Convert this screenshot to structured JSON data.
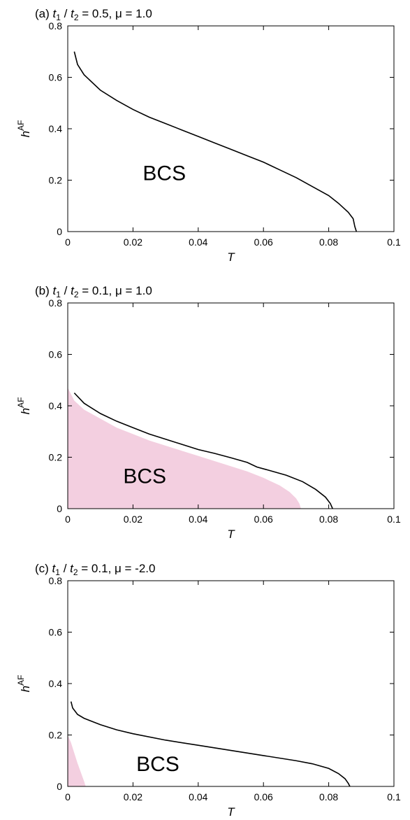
{
  "colors": {
    "line": "#000000",
    "shade": "#f3cfe0",
    "frame": "#000000"
  },
  "chart_data": [
    {
      "type": "line",
      "panel": "(a)",
      "title": {
        "prefix": "(a) ",
        "t1": "t",
        "t1_sub": "1",
        "sep": " / ",
        "t2": "t",
        "t2_sub": "2",
        "rest": " = 0.5, μ = 1.0"
      },
      "xlabel": "T",
      "ylabel": {
        "base": "h",
        "sup": "AF"
      },
      "xlim": [
        0,
        0.1
      ],
      "ylim": [
        0,
        0.8
      ],
      "xticks": [
        0,
        0.02,
        0.04,
        0.06,
        0.08,
        0.1
      ],
      "xtick_labels": [
        "0",
        "0.02",
        "0.04",
        "0.06",
        "0.08",
        "0.1"
      ],
      "yticks": [
        0,
        0.2,
        0.4,
        0.6,
        0.8
      ],
      "ytick_labels": [
        "0",
        "0.2",
        "0.4",
        "0.6",
        "0.8"
      ],
      "annotation": {
        "text": "BCS",
        "x": 0.023,
        "y": 0.2
      },
      "series": [
        {
          "x": [
            0.002,
            0.003,
            0.005,
            0.01,
            0.015,
            0.02,
            0.025,
            0.03,
            0.035,
            0.04,
            0.045,
            0.05,
            0.055,
            0.06,
            0.065,
            0.07,
            0.075,
            0.08,
            0.083,
            0.086,
            0.0875,
            0.088,
            0.0885
          ],
          "y": [
            0.7,
            0.65,
            0.61,
            0.55,
            0.51,
            0.475,
            0.445,
            0.42,
            0.395,
            0.37,
            0.345,
            0.32,
            0.295,
            0.27,
            0.24,
            0.21,
            0.175,
            0.14,
            0.11,
            0.075,
            0.05,
            0.02,
            0.0
          ]
        }
      ],
      "shaded": null
    },
    {
      "type": "line",
      "panel": "(b)",
      "title": {
        "prefix": "(b) ",
        "t1": "t",
        "t1_sub": "1",
        "sep": " / ",
        "t2": "t",
        "t2_sub": "2",
        "rest": " = 0.1, μ = 1.0"
      },
      "xlabel": "T",
      "ylabel": {
        "base": "h",
        "sup": "AF"
      },
      "xlim": [
        0,
        0.1
      ],
      "ylim": [
        0,
        0.8
      ],
      "xticks": [
        0,
        0.02,
        0.04,
        0.06,
        0.08,
        0.1
      ],
      "xtick_labels": [
        "0",
        "0.02",
        "0.04",
        "0.06",
        "0.08",
        "0.1"
      ],
      "yticks": [
        0,
        0.2,
        0.4,
        0.6,
        0.8
      ],
      "ytick_labels": [
        "0",
        "0.2",
        "0.4",
        "0.6",
        "0.8"
      ],
      "annotation": {
        "text": "BCS",
        "x": 0.017,
        "y": 0.1
      },
      "series": [
        {
          "x": [
            0.002,
            0.005,
            0.01,
            0.015,
            0.02,
            0.025,
            0.03,
            0.035,
            0.04,
            0.045,
            0.05,
            0.055,
            0.058,
            0.062,
            0.067,
            0.072,
            0.076,
            0.079,
            0.0805,
            0.0812
          ],
          "y": [
            0.45,
            0.41,
            0.37,
            0.34,
            0.315,
            0.29,
            0.27,
            0.25,
            0.23,
            0.215,
            0.198,
            0.18,
            0.162,
            0.148,
            0.13,
            0.105,
            0.075,
            0.045,
            0.02,
            0.0
          ]
        }
      ],
      "shaded": {
        "x": [
          0,
          0.002,
          0.005,
          0.01,
          0.015,
          0.02,
          0.025,
          0.03,
          0.035,
          0.04,
          0.045,
          0.05,
          0.055,
          0.06,
          0.065,
          0.068,
          0.07,
          0.071,
          0.0715
        ],
        "y": [
          0.47,
          0.42,
          0.385,
          0.35,
          0.315,
          0.29,
          0.265,
          0.245,
          0.225,
          0.205,
          0.185,
          0.165,
          0.145,
          0.12,
          0.09,
          0.065,
          0.04,
          0.02,
          0.0
        ]
      }
    },
    {
      "type": "line",
      "panel": "(c)",
      "title": {
        "prefix": "(c) ",
        "t1": "t",
        "t1_sub": "1",
        "sep": " / ",
        "t2": "t",
        "t2_sub": "2",
        "rest": " = 0.1, μ = -2.0"
      },
      "xlabel": "T",
      "ylabel": {
        "base": "h",
        "sup": "AF"
      },
      "xlim": [
        0,
        0.1
      ],
      "ylim": [
        0,
        0.8
      ],
      "xticks": [
        0,
        0.02,
        0.04,
        0.06,
        0.08,
        0.1
      ],
      "xtick_labels": [
        "0",
        "0.02",
        "0.04",
        "0.06",
        "0.08",
        "0.1"
      ],
      "yticks": [
        0,
        0.2,
        0.4,
        0.6,
        0.8
      ],
      "ytick_labels": [
        "0",
        "0.2",
        "0.4",
        "0.6",
        "0.8"
      ],
      "annotation": {
        "text": "BCS",
        "x": 0.021,
        "y": 0.06
      },
      "series": [
        {
          "x": [
            0.001,
            0.0015,
            0.003,
            0.005,
            0.01,
            0.015,
            0.02,
            0.03,
            0.04,
            0.05,
            0.06,
            0.07,
            0.075,
            0.08,
            0.083,
            0.085,
            0.086,
            0.0865
          ],
          "y": [
            0.33,
            0.305,
            0.28,
            0.265,
            0.24,
            0.22,
            0.205,
            0.18,
            0.16,
            0.14,
            0.12,
            0.1,
            0.088,
            0.07,
            0.05,
            0.03,
            0.012,
            0.0
          ]
        }
      ],
      "shaded": {
        "x": [
          0,
          0.001,
          0.002,
          0.003,
          0.004,
          0.005,
          0.0055
        ],
        "y": [
          0.2,
          0.17,
          0.13,
          0.09,
          0.055,
          0.02,
          0.0
        ]
      }
    }
  ]
}
